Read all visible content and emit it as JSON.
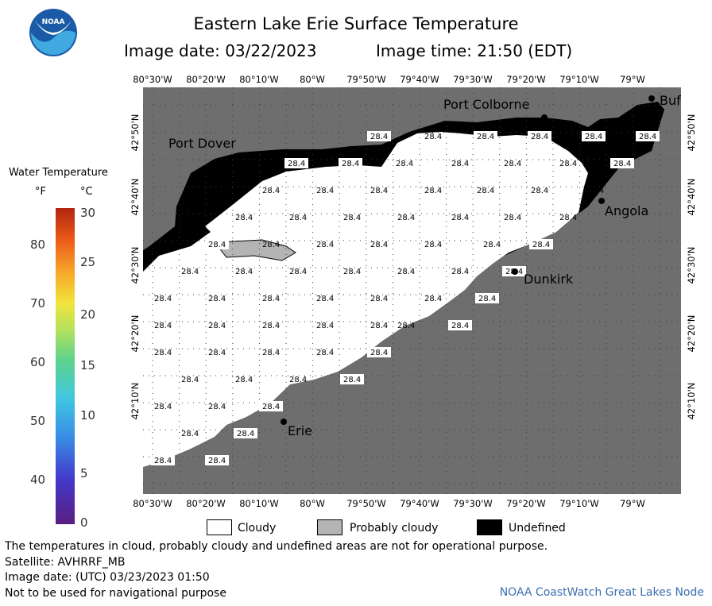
{
  "header": {
    "title": "Eastern Lake Erie Surface Temperature",
    "image_date": "Image date: 03/22/2023",
    "image_time": "Image time: 21:50 (EDT)"
  },
  "logo": {
    "text": "NOAA",
    "colors": {
      "blue": "#1a5aa6",
      "light": "#3fa9e0"
    }
  },
  "map": {
    "lon_ticks": [
      "80°30'W",
      "80°20'W",
      "80°10'W",
      "80°W",
      "79°50'W",
      "79°40'W",
      "79°30'W",
      "79°20'W",
      "79°10'W",
      "79°W"
    ],
    "lat_ticks": [
      "42°50'N",
      "42°40'N",
      "42°30'N",
      "42°20'N",
      "42°10'N"
    ],
    "places": {
      "port_colborne": "Port Colborne",
      "port_dover": "Port Dover",
      "buffalo": "Buf",
      "angola": "Angola",
      "dunkirk": "Dunkirk",
      "erie": "Erie"
    },
    "temp_value": "28.4",
    "colors": {
      "land": "#6e6e6e",
      "cloud": "#ffffff",
      "undefined": "#000000",
      "probably_cloudy": "#b4b4b4",
      "grid": "#3c3c3c"
    }
  },
  "legend": {
    "title": "Water Temperature",
    "unit_f": "°F",
    "unit_c": "°C",
    "f_labels": [
      "80",
      "70",
      "60",
      "50",
      "40"
    ],
    "c_labels": [
      "30",
      "25",
      "20",
      "15",
      "10",
      "5",
      "0"
    ]
  },
  "key": {
    "cloudy": "Cloudy",
    "probably_cloudy": "Probably cloudy",
    "undefined": "Undefined"
  },
  "footer": {
    "disclaimer": "The temperatures in cloud, probably cloudy and undefined areas are not for operational purpose.",
    "satellite": "Satellite: AVHRRF_MB",
    "utc": "Image date: (UTC) 03/23/2023  01:50",
    "nav": "Not to be used for navigational purpose",
    "node": "NOAA CoastWatch Great Lakes Node"
  }
}
